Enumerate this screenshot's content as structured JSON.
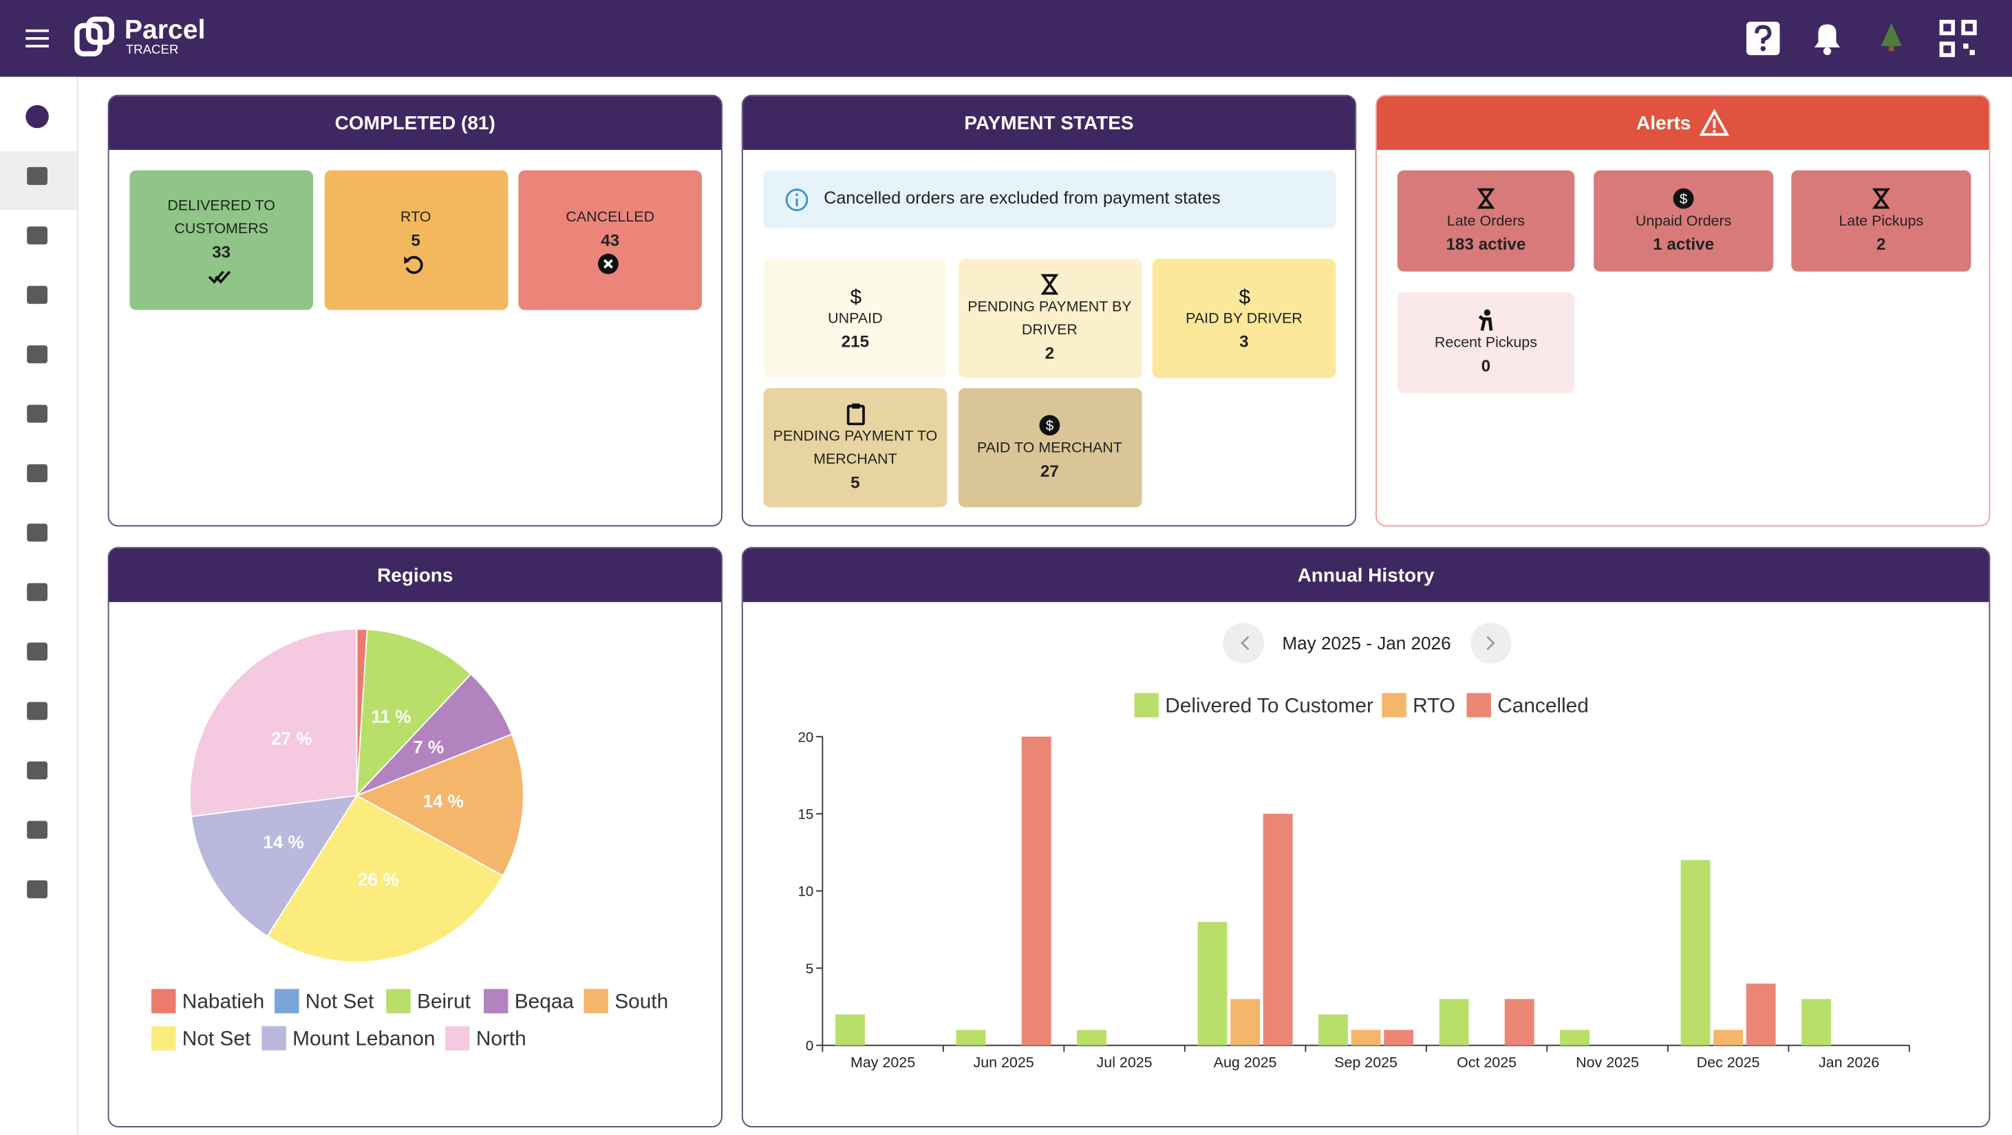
{
  "header": {
    "brand": "Parcel",
    "brand_sub": "TRACER"
  },
  "completed": {
    "title": "COMPLETED (81)",
    "tiles": [
      {
        "label": "DELIVERED TO CUSTOMERS",
        "value": 33
      },
      {
        "label": "RTO",
        "value": 5
      },
      {
        "label": "CANCELLED",
        "value": 43
      }
    ]
  },
  "payment_states": {
    "title": "PAYMENT STATES",
    "notice": "Cancelled orders are excluded from payment states",
    "tiles": [
      {
        "label": "UNPAID",
        "value": 215
      },
      {
        "label": "PENDING PAYMENT BY DRIVER",
        "value": 2
      },
      {
        "label": "PAID BY DRIVER",
        "value": 3
      },
      {
        "label": "PENDING PAYMENT TO MERCHANT",
        "value": 5
      },
      {
        "label": "PAID TO MERCHANT",
        "value": 27
      }
    ]
  },
  "alerts": {
    "title": "Alerts",
    "tiles": [
      {
        "label": "Late Orders",
        "value": "183 active"
      },
      {
        "label": "Unpaid Orders",
        "value": "1 active"
      },
      {
        "label": "Late Pickups",
        "value": 2
      },
      {
        "label": "Recent Pickups",
        "value": 0
      }
    ]
  },
  "chart_data": [
    {
      "type": "pie",
      "title": "Regions",
      "categories": [
        "Nabatieh",
        "Not Set",
        "Beirut",
        "Beqaa",
        "South",
        "Not Set",
        "Mount Lebanon",
        "North"
      ],
      "values": [
        1,
        0,
        11,
        7,
        14,
        26,
        14,
        27
      ],
      "value_labels": [
        null,
        null,
        "11 %",
        "7 %",
        "14 %",
        "26 %",
        "14 %",
        "27 %"
      ],
      "colors": [
        "#ec7a6e",
        "#7aa6db",
        "#b9df6b",
        "#b383c0",
        "#f4b66a",
        "#fbec7d",
        "#bab8dc",
        "#f5c9e0"
      ]
    },
    {
      "type": "bar",
      "title": "Annual History",
      "subtitle": "May 2025 - Jan 2026",
      "categories": [
        "May 2025",
        "Jun 2025",
        "Jul 2025",
        "Aug 2025",
        "Sep 2025",
        "Oct 2025",
        "Nov 2025",
        "Dec 2025",
        "Jan 2026"
      ],
      "series": [
        {
          "name": "Delivered To Customer",
          "color": "#b9df6b",
          "values": [
            2,
            1,
            1,
            8,
            2,
            3,
            1,
            12,
            3
          ]
        },
        {
          "name": "RTO",
          "color": "#f4b66a",
          "values": [
            0,
            0,
            0,
            3,
            1,
            0,
            0,
            1,
            0
          ]
        },
        {
          "name": "Cancelled",
          "color": "#ec8674",
          "values": [
            0,
            20,
            0,
            15,
            1,
            3,
            0,
            4,
            0
          ]
        }
      ],
      "ylim": [
        0,
        20
      ],
      "yticks": [
        0,
        5,
        10,
        15,
        20
      ]
    }
  ]
}
